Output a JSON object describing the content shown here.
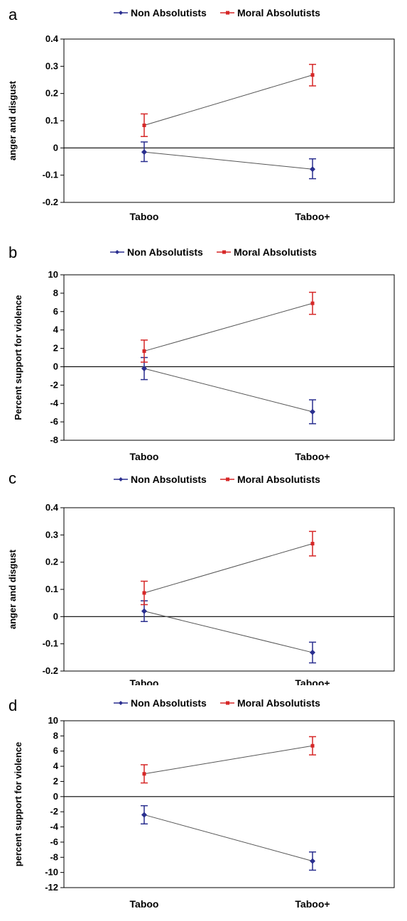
{
  "colors": {
    "non_absolutists": "#2a2f8f",
    "moral_absolutists": "#d62727",
    "connector": "#555555",
    "axis": "#000000"
  },
  "chart_data": [
    {
      "panel": "a",
      "type": "line",
      "categories": [
        "Taboo",
        "Taboo+"
      ],
      "ylabel": "anger and disgust",
      "ylim": [
        -0.2,
        0.4
      ],
      "yticks": [
        0.4,
        0.3,
        0.2,
        0.1,
        0,
        -0.1,
        -0.2
      ],
      "ytick_labels": [
        "0.4",
        "0.3",
        "0.2",
        "0.1",
        "0",
        "-0.1",
        "-0.2"
      ],
      "legend_position": "top-center",
      "series": [
        {
          "name": "Non Absolutists",
          "values": [
            -0.015,
            -0.078
          ],
          "err_low": [
            -0.05,
            -0.113
          ],
          "err_high": [
            0.022,
            -0.04
          ]
        },
        {
          "name": "Moral Absolutists",
          "values": [
            0.083,
            0.268
          ],
          "err_low": [
            0.042,
            0.228
          ],
          "err_high": [
            0.125,
            0.307
          ]
        }
      ]
    },
    {
      "panel": "b",
      "type": "line",
      "categories": [
        "Taboo",
        "Taboo+"
      ],
      "ylabel": "Percent support for violence",
      "ylim": [
        -8,
        10
      ],
      "yticks": [
        10,
        8,
        6,
        4,
        2,
        0,
        -2,
        -4,
        -6,
        -8
      ],
      "ytick_labels": [
        "10",
        "8",
        "6",
        "4",
        "2",
        "0",
        "-2",
        "-4",
        "-6",
        "-8"
      ],
      "legend_position": "top-center",
      "series": [
        {
          "name": "Non Absolutists",
          "values": [
            -0.2,
            -4.9
          ],
          "err_low": [
            -1.4,
            -6.2
          ],
          "err_high": [
            1.0,
            -3.6
          ]
        },
        {
          "name": "Moral Absolutists",
          "values": [
            1.7,
            6.9
          ],
          "err_low": [
            0.5,
            5.7
          ],
          "err_high": [
            2.9,
            8.1
          ]
        }
      ]
    },
    {
      "panel": "c",
      "type": "line",
      "categories": [
        "Taboo",
        "Taboo+"
      ],
      "ylabel": "anger and disgust",
      "ylim": [
        -0.2,
        0.4
      ],
      "yticks": [
        0.4,
        0.3,
        0.2,
        0.1,
        0,
        -0.1,
        -0.2
      ],
      "ytick_labels": [
        "0.4",
        "0.3",
        "0.2",
        "0.1",
        "0",
        "-0.1",
        "-0.2"
      ],
      "legend_position": "top-center",
      "series": [
        {
          "name": "Non Absolutists",
          "values": [
            0.02,
            -0.132
          ],
          "err_low": [
            -0.018,
            -0.17
          ],
          "err_high": [
            0.058,
            -0.094
          ]
        },
        {
          "name": "Moral Absolutists",
          "values": [
            0.087,
            0.268
          ],
          "err_low": [
            0.044,
            0.223
          ],
          "err_high": [
            0.13,
            0.313
          ]
        }
      ]
    },
    {
      "panel": "d",
      "type": "line",
      "categories": [
        "Taboo",
        "Taboo+"
      ],
      "ylabel": "percent support for violence",
      "ylim": [
        -12,
        10
      ],
      "yticks": [
        10,
        8,
        6,
        4,
        2,
        0,
        -2,
        -4,
        -6,
        -8,
        -10,
        -12
      ],
      "ytick_labels": [
        "10",
        "8",
        "6",
        "4",
        "2",
        "0",
        "-2",
        "-4",
        "-6",
        "-8",
        "-10",
        "-12"
      ],
      "legend_position": "top-center",
      "series": [
        {
          "name": "Non Absolutists",
          "values": [
            -2.4,
            -8.5
          ],
          "err_low": [
            -3.6,
            -9.7
          ],
          "err_high": [
            -1.2,
            -7.3
          ]
        },
        {
          "name": "Moral Absolutists",
          "values": [
            3.0,
            6.7
          ],
          "err_low": [
            1.8,
            5.5
          ],
          "err_high": [
            4.2,
            7.9
          ]
        }
      ]
    }
  ]
}
